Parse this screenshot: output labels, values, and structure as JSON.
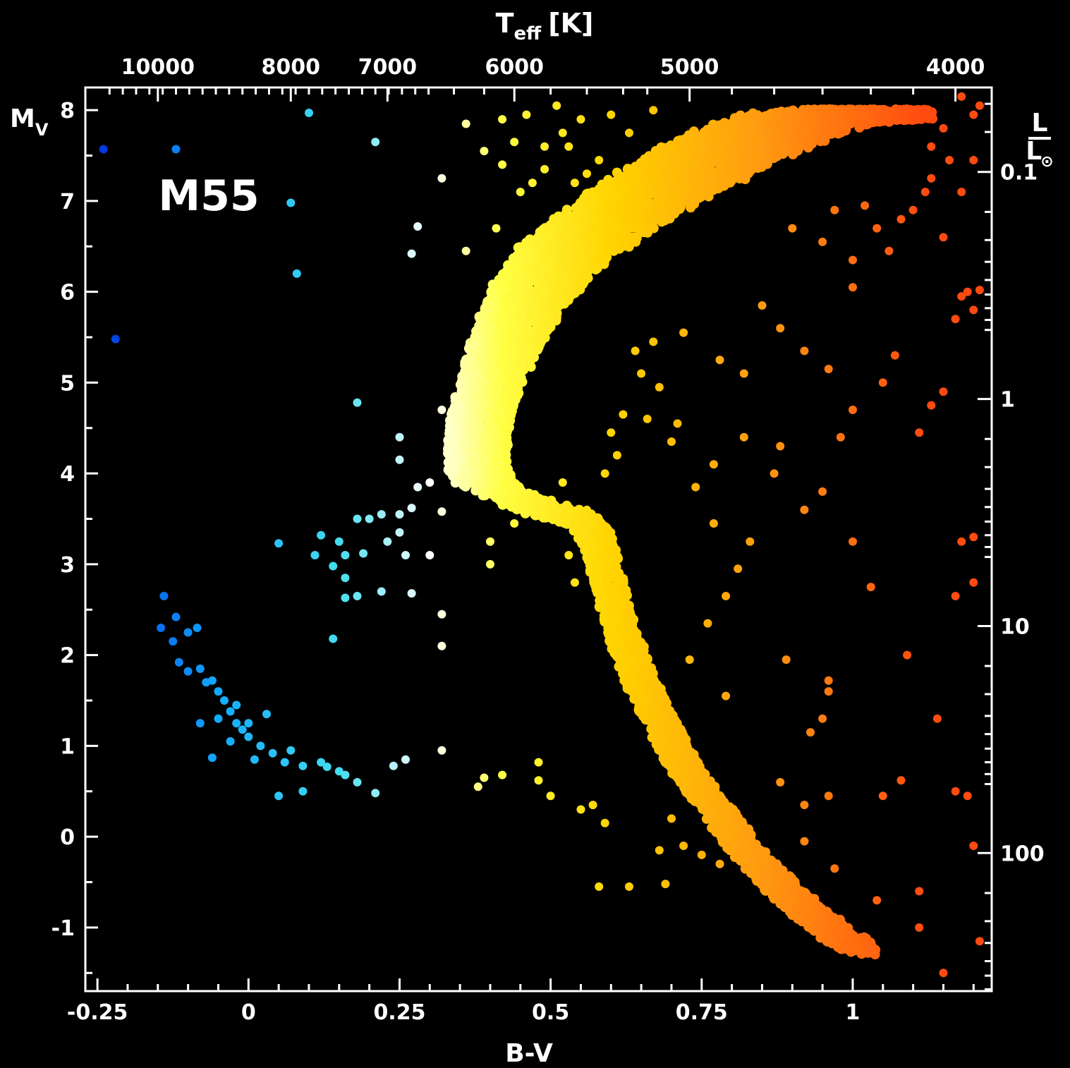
{
  "chart_data": {
    "type": "scatter",
    "title": "M55",
    "xlabel": "B-V",
    "ylabel": "M",
    "ylabel_sub": "V",
    "top_axis_label": "T",
    "top_axis_label_sub": "eff",
    "top_axis_label_unit": "[K]",
    "right_axis_label_num": "L",
    "right_axis_label_den": "L",
    "right_axis_label_den_sub": "⊙",
    "xlim": [
      -0.27,
      1.23
    ],
    "ylim": [
      8.25,
      -1.7
    ],
    "x_ticks": [
      {
        "v": -0.25,
        "label": "-0.25"
      },
      {
        "v": 0,
        "label": "0"
      },
      {
        "v": 0.25,
        "label": "0.25"
      },
      {
        "v": 0.5,
        "label": "0.5"
      },
      {
        "v": 0.75,
        "label": "0.75"
      },
      {
        "v": 1,
        "label": "1"
      }
    ],
    "y_ticks": [
      {
        "v": -1,
        "label": "-1"
      },
      {
        "v": 0,
        "label": "0"
      },
      {
        "v": 1,
        "label": "1"
      },
      {
        "v": 2,
        "label": "2"
      },
      {
        "v": 3,
        "label": "3"
      },
      {
        "v": 4,
        "label": "4"
      },
      {
        "v": 5,
        "label": "5"
      },
      {
        "v": 6,
        "label": "6"
      },
      {
        "v": 7,
        "label": "7"
      },
      {
        "v": 8,
        "label": "8"
      }
    ],
    "top_ticks": [
      {
        "bv": -0.15,
        "label": "10000"
      },
      {
        "bv": 0.07,
        "label": "8000"
      },
      {
        "bv": 0.23,
        "label": "7000"
      },
      {
        "bv": 0.44,
        "label": "6000"
      },
      {
        "bv": 0.73,
        "label": "5000"
      },
      {
        "bv": 1.17,
        "label": "4000"
      }
    ],
    "right_ticks": [
      {
        "mv": -0.18,
        "label": "100"
      },
      {
        "mv": 2.32,
        "label": "10"
      },
      {
        "mv": 4.82,
        "label": "1"
      },
      {
        "mv": 7.32,
        "label": "0.1"
      }
    ],
    "grid": false,
    "legend": "none",
    "color_scale": [
      "#0033dd",
      "#11aaff",
      "#44ddee",
      "#ffffff",
      "#ffff44",
      "#ffd400",
      "#ff9a10",
      "#ff4a10"
    ],
    "series": [
      {
        "points": [
          [
            -0.14,
            2.65
          ],
          [
            -0.145,
            2.3
          ],
          [
            -0.12,
            2.42
          ],
          [
            -0.1,
            2.25
          ],
          [
            -0.125,
            2.15
          ],
          [
            -0.085,
            2.3
          ],
          [
            -0.115,
            1.92
          ],
          [
            -0.1,
            1.82
          ],
          [
            -0.08,
            1.85
          ],
          [
            -0.06,
            1.72
          ],
          [
            -0.05,
            1.6
          ],
          [
            -0.04,
            1.5
          ],
          [
            -0.03,
            1.38
          ],
          [
            -0.02,
            1.25
          ],
          [
            -0.01,
            1.18
          ],
          [
            0.0,
            1.1
          ],
          [
            0.02,
            1.0
          ],
          [
            0.04,
            0.92
          ],
          [
            0.06,
            0.82
          ],
          [
            0.09,
            0.78
          ],
          [
            0.12,
            0.82
          ],
          [
            0.15,
            0.72
          ],
          [
            0.18,
            0.6
          ],
          [
            0.21,
            0.48
          ],
          [
            0.05,
            0.45
          ],
          [
            0.09,
            0.5
          ],
          [
            -0.06,
            0.87
          ],
          [
            -0.08,
            1.25
          ],
          [
            0.03,
            1.35
          ],
          [
            0.24,
            0.78
          ],
          [
            0.26,
            0.85
          ],
          [
            -0.05,
            1.3
          ],
          [
            -0.07,
            1.7
          ],
          [
            -0.03,
            1.05
          ],
          [
            0.01,
            0.85
          ],
          [
            0.07,
            0.95
          ],
          [
            0.13,
            0.77
          ],
          [
            0.16,
            0.68
          ],
          [
            -0.02,
            1.45
          ],
          [
            0.0,
            1.25
          ],
          [
            0.14,
            2.18
          ],
          [
            0.16,
            2.63
          ],
          [
            0.18,
            2.65
          ],
          [
            0.22,
            2.7
          ],
          [
            0.27,
            2.68
          ],
          [
            0.3,
            3.1
          ],
          [
            0.16,
            2.85
          ],
          [
            0.14,
            2.98
          ],
          [
            0.11,
            3.1
          ],
          [
            0.16,
            3.1
          ],
          [
            0.19,
            3.12
          ],
          [
            0.23,
            3.25
          ],
          [
            0.26,
            3.1
          ],
          [
            0.05,
            3.23
          ],
          [
            0.12,
            3.32
          ],
          [
            0.15,
            3.25
          ],
          [
            0.18,
            3.5
          ],
          [
            0.2,
            3.5
          ],
          [
            0.22,
            3.55
          ],
          [
            0.25,
            3.55
          ],
          [
            0.25,
            3.35
          ],
          [
            0.27,
            3.62
          ],
          [
            0.28,
            3.85
          ],
          [
            0.3,
            3.9
          ],
          [
            0.25,
            4.15
          ],
          [
            0.25,
            4.4
          ],
          [
            0.32,
            3.58
          ],
          [
            0.32,
            4.7
          ],
          [
            0.18,
            4.78
          ],
          [
            0.32,
            2.1
          ],
          [
            0.32,
            2.45
          ],
          [
            0.32,
            0.95
          ],
          [
            0.38,
            0.55
          ],
          [
            0.48,
            0.62
          ],
          [
            0.39,
            0.65
          ],
          [
            0.42,
            0.68
          ],
          [
            0.48,
            0.82
          ],
          [
            0.44,
            3.45
          ],
          [
            0.4,
            3.0
          ],
          [
            0.4,
            3.25
          ],
          [
            -0.22,
            5.48
          ],
          [
            -0.24,
            7.57
          ],
          [
            -0.12,
            7.57
          ],
          [
            0.08,
            6.2
          ],
          [
            0.07,
            6.98
          ],
          [
            0.1,
            7.97
          ],
          [
            0.21,
            7.65
          ],
          [
            0.27,
            6.42
          ],
          [
            0.28,
            6.72
          ],
          [
            0.32,
            7.25
          ],
          [
            0.36,
            6.45
          ],
          [
            0.41,
            6.7
          ],
          [
            0.45,
            7.1
          ],
          [
            0.39,
            7.55
          ],
          [
            0.42,
            7.9
          ],
          [
            0.46,
            7.95
          ],
          [
            0.49,
            7.6
          ],
          [
            0.52,
            7.75
          ],
          [
            0.55,
            7.9
          ],
          [
            0.58,
            7.45
          ],
          [
            0.6,
            7.95
          ],
          [
            0.54,
            7.2
          ],
          [
            0.49,
            7.35
          ],
          [
            0.36,
            7.85
          ],
          [
            0.42,
            7.4
          ],
          [
            0.44,
            7.65
          ],
          [
            0.47,
            7.2
          ],
          [
            0.53,
            7.6
          ],
          [
            0.51,
            8.05
          ],
          [
            0.56,
            7.3
          ],
          [
            0.63,
            7.75
          ],
          [
            0.67,
            8.0
          ],
          [
            0.5,
            0.45
          ],
          [
            0.55,
            0.3
          ],
          [
            0.57,
            0.35
          ],
          [
            0.59,
            0.15
          ],
          [
            0.58,
            -0.55
          ],
          [
            0.63,
            -0.55
          ],
          [
            0.69,
            -0.52
          ],
          [
            0.68,
            -0.15
          ],
          [
            0.7,
            0.2
          ],
          [
            0.72,
            -0.1
          ],
          [
            0.75,
            -0.2
          ],
          [
            0.78,
            -0.3
          ],
          [
            0.85,
            -0.3
          ],
          [
            0.86,
            -0.45
          ],
          [
            0.82,
            -0.1
          ],
          [
            0.92,
            -0.05
          ],
          [
            0.96,
            0.45
          ],
          [
            0.92,
            0.35
          ],
          [
            0.88,
            0.6
          ],
          [
            0.93,
            1.15
          ],
          [
            0.95,
            1.3
          ],
          [
            0.96,
            1.6
          ],
          [
            0.96,
            1.72
          ],
          [
            0.89,
            1.95
          ],
          [
            0.79,
            1.55
          ],
          [
            0.73,
            1.95
          ],
          [
            0.76,
            2.35
          ],
          [
            0.79,
            2.65
          ],
          [
            0.81,
            2.95
          ],
          [
            0.83,
            3.25
          ],
          [
            0.77,
            3.45
          ],
          [
            0.74,
            3.85
          ],
          [
            0.77,
            4.1
          ],
          [
            0.82,
            4.4
          ],
          [
            0.87,
            4.0
          ],
          [
            0.88,
            4.3
          ],
          [
            0.92,
            3.6
          ],
          [
            0.95,
            3.8
          ],
          [
            0.98,
            4.4
          ],
          [
            1.0,
            4.7
          ],
          [
            0.96,
            5.15
          ],
          [
            0.92,
            5.35
          ],
          [
            0.88,
            5.6
          ],
          [
            0.85,
            5.85
          ],
          [
            0.82,
            5.1
          ],
          [
            0.78,
            5.25
          ],
          [
            1.05,
            5.0
          ],
          [
            1.07,
            5.3
          ],
          [
            1.11,
            4.45
          ],
          [
            1.13,
            4.75
          ],
          [
            1.15,
            4.9
          ],
          [
            1.17,
            5.7
          ],
          [
            1.18,
            5.95
          ],
          [
            1.19,
            6.0
          ],
          [
            1.03,
            2.75
          ],
          [
            1.0,
            3.25
          ],
          [
            1.17,
            2.65
          ],
          [
            1.18,
            3.25
          ],
          [
            1.09,
            2.0
          ],
          [
            1.14,
            1.3
          ],
          [
            1.17,
            0.5
          ],
          [
            1.19,
            0.45
          ],
          [
            1.08,
            0.62
          ],
          [
            1.05,
            0.45
          ],
          [
            0.97,
            -0.35
          ],
          [
            1.04,
            -0.7
          ],
          [
            1.11,
            -1.0
          ],
          [
            1.11,
            -0.6
          ],
          [
            1.15,
            -1.5
          ],
          [
            1.21,
            -1.15
          ],
          [
            1.2,
            -0.1
          ],
          [
            1.2,
            2.8
          ],
          [
            1.2,
            3.3
          ],
          [
            1.2,
            5.8
          ],
          [
            1.21,
            6.02
          ],
          [
            1.15,
            6.6
          ],
          [
            1.1,
            6.9
          ],
          [
            1.12,
            7.1
          ],
          [
            1.13,
            7.25
          ],
          [
            1.18,
            7.1
          ],
          [
            1.2,
            7.45
          ],
          [
            1.2,
            7.95
          ],
          [
            1.18,
            8.15
          ],
          [
            1.21,
            8.05
          ],
          [
            1.15,
            7.8
          ],
          [
            1.16,
            7.45
          ],
          [
            1.13,
            7.6
          ],
          [
            1.08,
            6.8
          ],
          [
            1.06,
            6.45
          ],
          [
            1.04,
            6.7
          ],
          [
            1.02,
            6.95
          ],
          [
            0.97,
            6.9
          ],
          [
            0.95,
            6.55
          ],
          [
            0.9,
            6.7
          ],
          [
            1.0,
            6.35
          ],
          [
            1.0,
            6.05
          ],
          [
            0.62,
            2.0
          ],
          [
            0.58,
            2.6
          ],
          [
            0.54,
            2.8
          ],
          [
            0.53,
            3.1
          ],
          [
            0.52,
            3.9
          ],
          [
            0.59,
            4.0
          ],
          [
            0.6,
            4.45
          ],
          [
            0.62,
            4.65
          ],
          [
            0.66,
            4.6
          ],
          [
            0.7,
            4.35
          ],
          [
            0.71,
            4.55
          ],
          [
            0.68,
            4.95
          ],
          [
            0.65,
            5.1
          ],
          [
            0.64,
            5.35
          ],
          [
            0.67,
            5.45
          ],
          [
            0.72,
            5.55
          ],
          [
            0.61,
            4.2
          ],
          [
            0.6,
            3.35
          ],
          [
            0.56,
            3.6
          ]
        ]
      }
    ],
    "bands": [
      {
        "name": "main sequence lower",
        "path": [
          [
            0.38,
            4.0
          ],
          [
            0.38,
            4.5
          ],
          [
            0.4,
            5.0
          ],
          [
            0.43,
            5.5
          ],
          [
            0.47,
            6.0
          ],
          [
            0.52,
            6.4
          ],
          [
            0.6,
            6.8
          ],
          [
            0.68,
            7.15
          ],
          [
            0.76,
            7.45
          ],
          [
            0.84,
            7.7
          ],
          [
            0.92,
            7.9
          ],
          [
            1.0,
            7.95
          ],
          [
            1.06,
            7.95
          ]
        ],
        "width": [
          0.05,
          0.05,
          0.05,
          0.06,
          0.07,
          0.08,
          0.09,
          0.1,
          0.11,
          0.11,
          0.11,
          0.1,
          0.08
        ]
      },
      {
        "name": "subgiant",
        "path": [
          [
            0.38,
            4.0
          ],
          [
            0.42,
            3.8
          ],
          [
            0.47,
            3.65
          ],
          [
            0.52,
            3.55
          ],
          [
            0.56,
            3.45
          ],
          [
            0.58,
            3.2
          ]
        ],
        "width": [
          0.05,
          0.035,
          0.03,
          0.028,
          0.025,
          0.025
        ]
      },
      {
        "name": "red giant branch",
        "path": [
          [
            0.58,
            3.2
          ],
          [
            0.6,
            2.7
          ],
          [
            0.62,
            2.2
          ],
          [
            0.65,
            1.7
          ],
          [
            0.68,
            1.3
          ],
          [
            0.71,
            0.9
          ],
          [
            0.74,
            0.6
          ],
          [
            0.78,
            0.25
          ],
          [
            0.81,
            -0.05
          ],
          [
            0.85,
            -0.35
          ],
          [
            0.89,
            -0.6
          ],
          [
            0.93,
            -0.85
          ],
          [
            0.98,
            -1.1
          ],
          [
            1.02,
            -1.25
          ]
        ],
        "width": [
          0.025,
          0.025,
          0.025,
          0.025,
          0.025,
          0.025,
          0.025,
          0.025,
          0.025,
          0.025,
          0.025,
          0.025,
          0.025,
          0.02
        ]
      }
    ]
  }
}
